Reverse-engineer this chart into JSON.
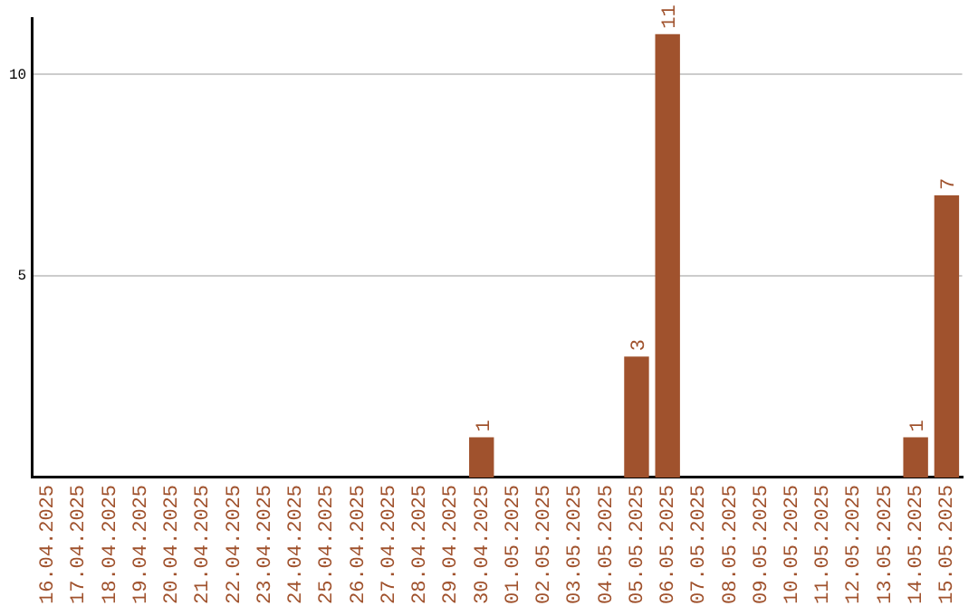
{
  "chart_data": {
    "type": "bar",
    "categories": [
      "16.04.2025",
      "17.04.2025",
      "18.04.2025",
      "19.04.2025",
      "20.04.2025",
      "21.04.2025",
      "22.04.2025",
      "23.04.2025",
      "24.04.2025",
      "25.04.2025",
      "26.04.2025",
      "27.04.2025",
      "28.04.2025",
      "29.04.2025",
      "30.04.2025",
      "01.05.2025",
      "02.05.2025",
      "03.05.2025",
      "04.05.2025",
      "05.05.2025",
      "06.05.2025",
      "07.05.2025",
      "08.05.2025",
      "09.05.2025",
      "10.05.2025",
      "11.05.2025",
      "12.05.2025",
      "13.05.2025",
      "14.05.2025",
      "15.05.2025"
    ],
    "values": [
      0,
      0,
      0,
      0,
      0,
      0,
      0,
      0,
      0,
      0,
      0,
      0,
      0,
      0,
      1,
      0,
      0,
      0,
      0,
      3,
      11,
      0,
      0,
      0,
      0,
      0,
      0,
      0,
      1,
      7
    ],
    "value_labels": [
      null,
      null,
      null,
      null,
      null,
      null,
      null,
      null,
      null,
      null,
      null,
      null,
      null,
      null,
      "1",
      null,
      null,
      null,
      null,
      "3",
      "11",
      null,
      null,
      null,
      null,
      null,
      null,
      null,
      "1",
      "7"
    ],
    "color": "#a0522d",
    "ylim": [
      0,
      11.4
    ],
    "yticks": [
      5,
      10
    ],
    "grid": "y",
    "legend": false
  }
}
